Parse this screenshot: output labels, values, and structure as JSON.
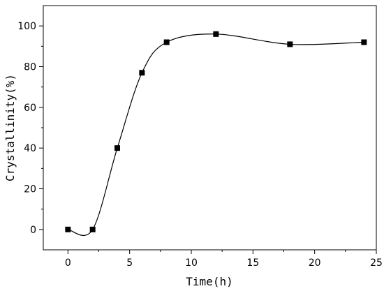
{
  "chart_data": {
    "type": "scatter",
    "xlabel": "Time(h)",
    "ylabel": "Crystallinity(%)",
    "xlim": [
      -2,
      25
    ],
    "ylim": [
      -10,
      110
    ],
    "x_ticks": [
      0,
      5,
      10,
      15,
      20,
      25
    ],
    "y_ticks": [
      0,
      20,
      40,
      60,
      80,
      100
    ],
    "grid": false,
    "legend": "none",
    "series": [
      {
        "points": [
          {
            "x": 0,
            "y": 0
          },
          {
            "x": 2,
            "y": 0
          },
          {
            "x": 4,
            "y": 40
          },
          {
            "x": 6,
            "y": 77
          },
          {
            "x": 8,
            "y": 92
          },
          {
            "x": 12,
            "y": 96
          },
          {
            "x": 18,
            "y": 91
          },
          {
            "x": 24,
            "y": 92
          }
        ],
        "marker": "square",
        "color": "#000000",
        "fit_curve": "smooth"
      }
    ]
  }
}
